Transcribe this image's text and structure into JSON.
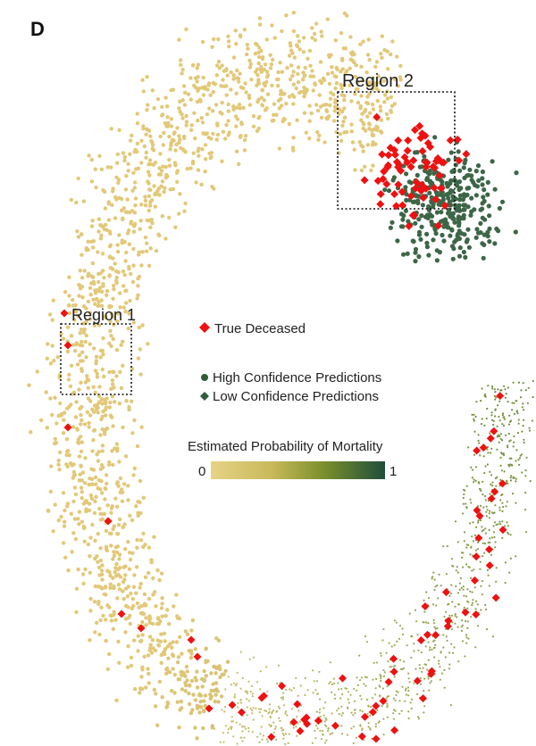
{
  "panel_label": "D",
  "chart_data": {
    "type": "scatter",
    "description_free": true,
    "regions": [
      {
        "label": "Region 1"
      },
      {
        "label": "Region 2"
      }
    ],
    "legend": {
      "entries": [
        {
          "label": "True Deceased",
          "marker": "diamond",
          "color": "#ee1111"
        },
        {
          "label": "High Confidence Predictions",
          "marker": "circle",
          "color": "#2e5e3a"
        },
        {
          "label": "Low Confidence Predictions",
          "marker": "diamond",
          "color": "#2e5e3a"
        }
      ],
      "placement": "center"
    },
    "colorbar": {
      "title": "Estimated Probability of Mortality",
      "min": 0,
      "max": 1,
      "min_label": "0",
      "max_label": "1",
      "colors": [
        "#e6d386",
        "#c9b95a",
        "#7a8f2c",
        "#1f4e3a"
      ]
    },
    "series": [
      {
        "name": "High Confidence Predictions",
        "color_low": "#e2c878",
        "color_high": "#3d6647"
      },
      {
        "name": "Low Confidence Predictions",
        "color_low": "#d8c870",
        "color_high": "#6f8f3f"
      },
      {
        "name": "True Deceased",
        "color": "#ee1111"
      }
    ]
  }
}
